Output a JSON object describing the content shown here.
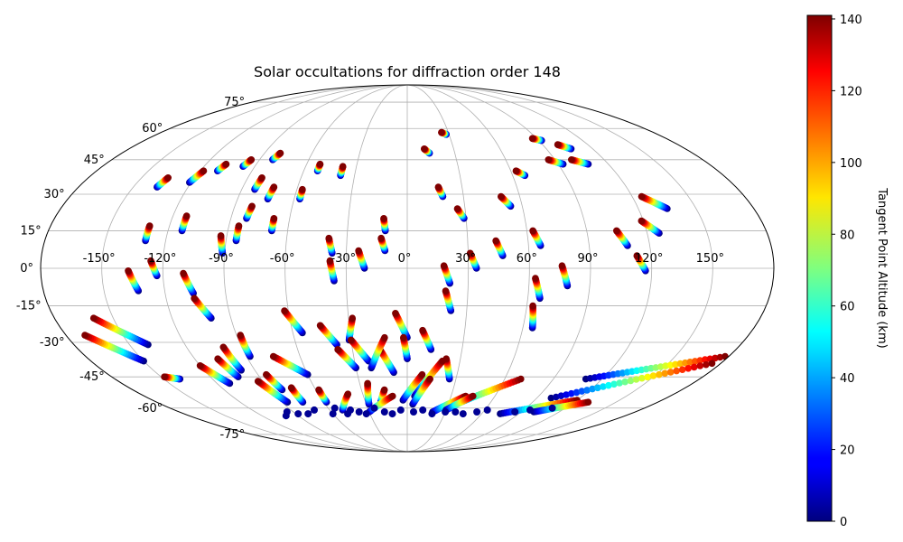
{
  "chart_data": {
    "type": "scatter",
    "projection": "Mollweide (Aitoff-style) global map",
    "title": "Solar occultations for diffraction order 148",
    "xlabel": "",
    "ylabel": "",
    "x_unit": "longitude (degrees)",
    "y_unit": "latitude (degrees)",
    "xlim": [
      -180,
      180
    ],
    "ylim": [
      -90,
      90
    ],
    "grid": true,
    "lon_ticks": [
      -150,
      -120,
      -90,
      -60,
      -30,
      0,
      30,
      60,
      90,
      120,
      150
    ],
    "lon_tick_labels": [
      "-150°",
      "-120°",
      "-90°",
      "-60°",
      "-30°",
      "0°",
      "30°",
      "60°",
      "90°",
      "120°",
      "150°"
    ],
    "lat_ticks": [
      -75,
      -60,
      -45,
      -30,
      -15,
      0,
      15,
      30,
      45,
      60,
      75
    ],
    "lat_tick_labels": [
      "-75°",
      "-60°",
      "-45°",
      "-30°",
      "-15°",
      "0°",
      "15°",
      "30°",
      "45°",
      "60°",
      "75°"
    ],
    "colorbar": {
      "label": "Tangent Point Altitude (km)",
      "colormap": "jet",
      "range": [
        0,
        141
      ],
      "ticks": [
        0,
        20,
        40,
        60,
        80,
        100,
        120,
        140
      ],
      "tick_labels": [
        "0",
        "20",
        "40",
        "60",
        "80",
        "100",
        "120",
        "140"
      ]
    },
    "colors": {
      "grid": "#b0b0b0",
      "outline": "#000000",
      "low_altitude": "#00007f",
      "high_altitude": "#7f0000"
    },
    "tracks": [
      {
        "lon_top": -135,
        "lat_top": 37,
        "lon_bot": -137,
        "lat_bot": 33
      },
      {
        "lon_top": -118,
        "lat_top": 40,
        "lon_bot": -121,
        "lat_bot": 35
      },
      {
        "lon_top": -108,
        "lat_top": 43,
        "lon_bot": -110,
        "lat_bot": 40
      },
      {
        "lon_top": -95,
        "lat_top": 45,
        "lon_bot": -97,
        "lat_bot": 42
      },
      {
        "lon_top": -80,
        "lat_top": 48,
        "lon_bot": -82,
        "lat_bot": 45
      },
      {
        "lon_top": -82,
        "lat_top": 37,
        "lon_bot": -83,
        "lat_bot": 32
      },
      {
        "lon_top": -73,
        "lat_top": 33,
        "lon_bot": -74,
        "lat_bot": 28
      },
      {
        "lon_top": -52,
        "lat_top": 43,
        "lon_bot": -52,
        "lat_bot": 40
      },
      {
        "lon_top": -38,
        "lat_top": 42,
        "lon_bot": -38,
        "lat_bot": 38
      },
      {
        "lon_top": -57,
        "lat_top": 32,
        "lon_bot": -57,
        "lat_bot": 28
      },
      {
        "lon_top": 11,
        "lat_top": 50,
        "lon_bot": 14,
        "lat_bot": 48
      },
      {
        "lon_top": 25,
        "lat_top": 58,
        "lon_bot": 28,
        "lat_bot": 57
      },
      {
        "lon_top": 87,
        "lat_top": 55,
        "lon_bot": 92,
        "lat_bot": 54
      },
      {
        "lon_top": 100,
        "lat_top": 52,
        "lon_bot": 106,
        "lat_bot": 50
      },
      {
        "lon_top": 86,
        "lat_top": 45,
        "lon_bot": 93,
        "lat_bot": 43
      },
      {
        "lon_top": 100,
        "lat_top": 45,
        "lon_bot": 108,
        "lat_bot": 43
      },
      {
        "lon_top": 63,
        "lat_top": 40,
        "lon_bot": 67,
        "lat_bot": 38
      },
      {
        "lon_top": 17,
        "lat_top": 33,
        "lon_bot": 19,
        "lat_bot": 29
      },
      {
        "lon_top": 50,
        "lat_top": 29,
        "lon_bot": 54,
        "lat_bot": 25
      },
      {
        "lon_top": 125,
        "lat_top": 29,
        "lon_bot": 135,
        "lat_bot": 24
      },
      {
        "lon_top": -130,
        "lat_top": 17,
        "lon_bot": -130,
        "lat_bot": 11
      },
      {
        "lon_top": -113,
        "lat_top": 21,
        "lon_bot": -113,
        "lat_bot": 15
      },
      {
        "lon_top": -81,
        "lat_top": 25,
        "lon_bot": -82,
        "lat_bot": 20
      },
      {
        "lon_top": -85,
        "lat_top": 17,
        "lon_bot": -85,
        "lat_bot": 11
      },
      {
        "lon_top": -68,
        "lat_top": 20,
        "lon_bot": -68,
        "lat_bot": 15
      },
      {
        "lon_top": -93,
        "lat_top": 13,
        "lon_bot": -91,
        "lat_bot": 6
      },
      {
        "lon_top": -39,
        "lat_top": 12,
        "lon_bot": -37,
        "lat_bot": 6
      },
      {
        "lon_top": -24,
        "lat_top": 7,
        "lon_bot": -21,
        "lat_bot": 0
      },
      {
        "lon_top": -12,
        "lat_top": 20,
        "lon_bot": -11,
        "lat_bot": 15
      },
      {
        "lon_top": -13,
        "lat_top": 12,
        "lon_bot": -11,
        "lat_bot": 7
      },
      {
        "lon_top": 26,
        "lat_top": 24,
        "lon_bot": 29,
        "lat_bot": 20
      },
      {
        "lon_top": 31,
        "lat_top": 6,
        "lon_bot": 34,
        "lat_bot": 0
      },
      {
        "lon_top": 44,
        "lat_top": 11,
        "lon_bot": 47,
        "lat_bot": 5
      },
      {
        "lon_top": 63,
        "lat_top": 15,
        "lon_bot": 66,
        "lat_bot": 9
      },
      {
        "lon_top": 105,
        "lat_top": 15,
        "lon_bot": 109,
        "lat_bot": 9
      },
      {
        "lon_top": 119,
        "lat_top": 19,
        "lon_bot": 126,
        "lat_bot": 14
      },
      {
        "lon_top": 113,
        "lat_top": 5,
        "lon_bot": 117,
        "lat_bot": -1
      },
      {
        "lon_top": -137,
        "lat_top": -1,
        "lon_bot": -133,
        "lat_bot": -9
      },
      {
        "lon_top": -126,
        "lat_top": 3,
        "lon_bot": -123,
        "lat_bot": -3
      },
      {
        "lon_top": -110,
        "lat_top": -2,
        "lon_bot": -106,
        "lat_bot": -10
      },
      {
        "lon_top": -106,
        "lat_top": -12,
        "lon_bot": -100,
        "lat_bot": -20
      },
      {
        "lon_top": -38,
        "lat_top": 3,
        "lon_bot": -36,
        "lat_bot": -5
      },
      {
        "lon_top": 18,
        "lat_top": 1,
        "lon_bot": 21,
        "lat_bot": -6
      },
      {
        "lon_top": 19,
        "lat_top": -9,
        "lon_bot": 22,
        "lat_bot": -17
      },
      {
        "lon_top": 63,
        "lat_top": -4,
        "lon_bot": 66,
        "lat_bot": -12
      },
      {
        "lon_top": 63,
        "lat_top": -15,
        "lon_bot": 65,
        "lat_bot": -24
      },
      {
        "lon_top": 76,
        "lat_top": 1,
        "lon_bot": 79,
        "lat_bot": -7
      },
      {
        "lon_top": -160,
        "lat_top": -20,
        "lon_bot": -140,
        "lat_bot": -31
      },
      {
        "lon_top": -170,
        "lat_top": -27,
        "lon_bot": -150,
        "lat_bot": -38
      },
      {
        "lon_top": -62,
        "lat_top": -17,
        "lon_bot": -55,
        "lat_bot": -26
      },
      {
        "lon_top": -45,
        "lat_top": -23,
        "lon_bot": -38,
        "lat_bot": -31
      },
      {
        "lon_top": -28,
        "lat_top": -20,
        "lon_bot": -31,
        "lat_bot": -29
      },
      {
        "lon_top": -6,
        "lat_top": -18,
        "lon_bot": 0,
        "lat_bot": -28
      },
      {
        "lon_top": 8,
        "lat_top": -25,
        "lon_bot": 13,
        "lat_bot": -33
      },
      {
        "lon_top": -30,
        "lat_top": -29,
        "lon_bot": -22,
        "lat_bot": -38
      },
      {
        "lon_top": -38,
        "lat_top": -33,
        "lon_bot": -30,
        "lat_bot": -41
      },
      {
        "lon_top": -15,
        "lat_top": -33,
        "lon_bot": -8,
        "lat_bot": -43
      },
      {
        "lon_top": -12,
        "lat_top": -28,
        "lon_bot": -21,
        "lat_bot": -41
      },
      {
        "lon_top": -2,
        "lat_top": -28,
        "lon_bot": 0,
        "lat_bot": -37
      },
      {
        "lon_top": -88,
        "lat_top": -27,
        "lon_bot": -88,
        "lat_bot": -36
      },
      {
        "lon_top": -100,
        "lat_top": -32,
        "lon_bot": -98,
        "lat_bot": -42
      },
      {
        "lon_top": -120,
        "lat_top": -40,
        "lon_bot": -112,
        "lat_bot": -48
      },
      {
        "lon_top": -107,
        "lat_top": -37,
        "lon_bot": -103,
        "lat_bot": -45
      },
      {
        "lon_top": -75,
        "lat_top": -36,
        "lon_bot": -60,
        "lat_bot": -44
      },
      {
        "lon_top": -85,
        "lat_top": -44,
        "lon_bot": -82,
        "lat_bot": -51
      },
      {
        "lon_top": -93,
        "lat_top": -47,
        "lon_bot": -86,
        "lat_bot": -57
      },
      {
        "lon_top": 22,
        "lat_top": -37,
        "lon_bot": 26,
        "lat_bot": -46
      },
      {
        "lon_top": 20,
        "lat_top": -38,
        "lon_bot": 5,
        "lat_bot": -54
      },
      {
        "lon_top": 9,
        "lat_top": -44,
        "lon_bot": -3,
        "lat_bot": -56
      },
      {
        "lon_top": 14,
        "lat_top": -46,
        "lon_bot": 4,
        "lat_bot": -58
      },
      {
        "lon_top": -25,
        "lat_top": -48,
        "lon_bot": -28,
        "lat_bot": -58
      },
      {
        "lon_top": -15,
        "lat_top": -51,
        "lon_bot": -19,
        "lat_bot": -57
      },
      {
        "lon_top": -75,
        "lat_top": -50,
        "lon_bot": -75,
        "lat_bot": -57
      },
      {
        "lon_top": -58,
        "lat_top": -51,
        "lon_bot": -58,
        "lat_bot": -57
      },
      {
        "lon_top": -148,
        "lat_top": -45,
        "lon_bot": -140,
        "lat_bot": -46
      },
      {
        "lon_top": 178,
        "lat_top": -36,
        "lon_bot": 110,
        "lat_bot": -46
      },
      {
        "lon_top": 175,
        "lat_top": -39,
        "lon_bot": 100,
        "lat_bot": -55
      },
      {
        "lon_top": 70,
        "lat_top": -46,
        "lon_bot": 30,
        "lat_bot": -60
      },
      {
        "lon_top": 40,
        "lat_top": -54,
        "lon_bot": 20,
        "lat_bot": -62
      },
      {
        "lon_top": 45,
        "lat_top": -54,
        "lon_bot": 30,
        "lat_bot": -61
      },
      {
        "lon_top": 120,
        "lat_top": -56,
        "lon_bot": 75,
        "lat_bot": -63
      },
      {
        "lon_top": 130,
        "lat_top": -57,
        "lon_bot": 100,
        "lat_bot": -62
      },
      {
        "lon_top": -40,
        "lat_top": -53,
        "lon_bot": -50,
        "lat_bot": -61
      },
      {
        "lon_top": -10,
        "lat_top": -54,
        "lon_bot": -30,
        "lat_bot": -62
      }
    ],
    "cluster_points": [
      {
        "lon": -95,
        "lat": -62
      },
      {
        "lon": -100,
        "lat": -64
      },
      {
        "lon": -88,
        "lat": -63
      },
      {
        "lon": -80,
        "lat": -63
      },
      {
        "lon": -72,
        "lat": -61
      },
      {
        "lon": -60,
        "lat": -63
      },
      {
        "lon": -55,
        "lat": -60
      },
      {
        "lon": -48,
        "lat": -63
      },
      {
        "lon": -44,
        "lat": -61
      },
      {
        "lon": -38,
        "lat": -62
      },
      {
        "lon": -33,
        "lat": -63
      },
      {
        "lon": -25,
        "lat": -60
      },
      {
        "lon": -18,
        "lat": -62
      },
      {
        "lon": -12,
        "lat": -63
      },
      {
        "lon": -5,
        "lat": -61
      },
      {
        "lon": 5,
        "lat": -62
      },
      {
        "lon": 12,
        "lat": -61
      },
      {
        "lon": 20,
        "lat": -63
      },
      {
        "lon": 30,
        "lat": -62
      },
      {
        "lon": 38,
        "lat": -62
      },
      {
        "lon": 45,
        "lat": -63
      },
      {
        "lon": 55,
        "lat": -62
      },
      {
        "lon": 62,
        "lat": -61
      },
      {
        "lon": 85,
        "lat": -62
      },
      {
        "lon": 95,
        "lat": -61
      },
      {
        "lon": 110,
        "lat": -60
      }
    ]
  }
}
